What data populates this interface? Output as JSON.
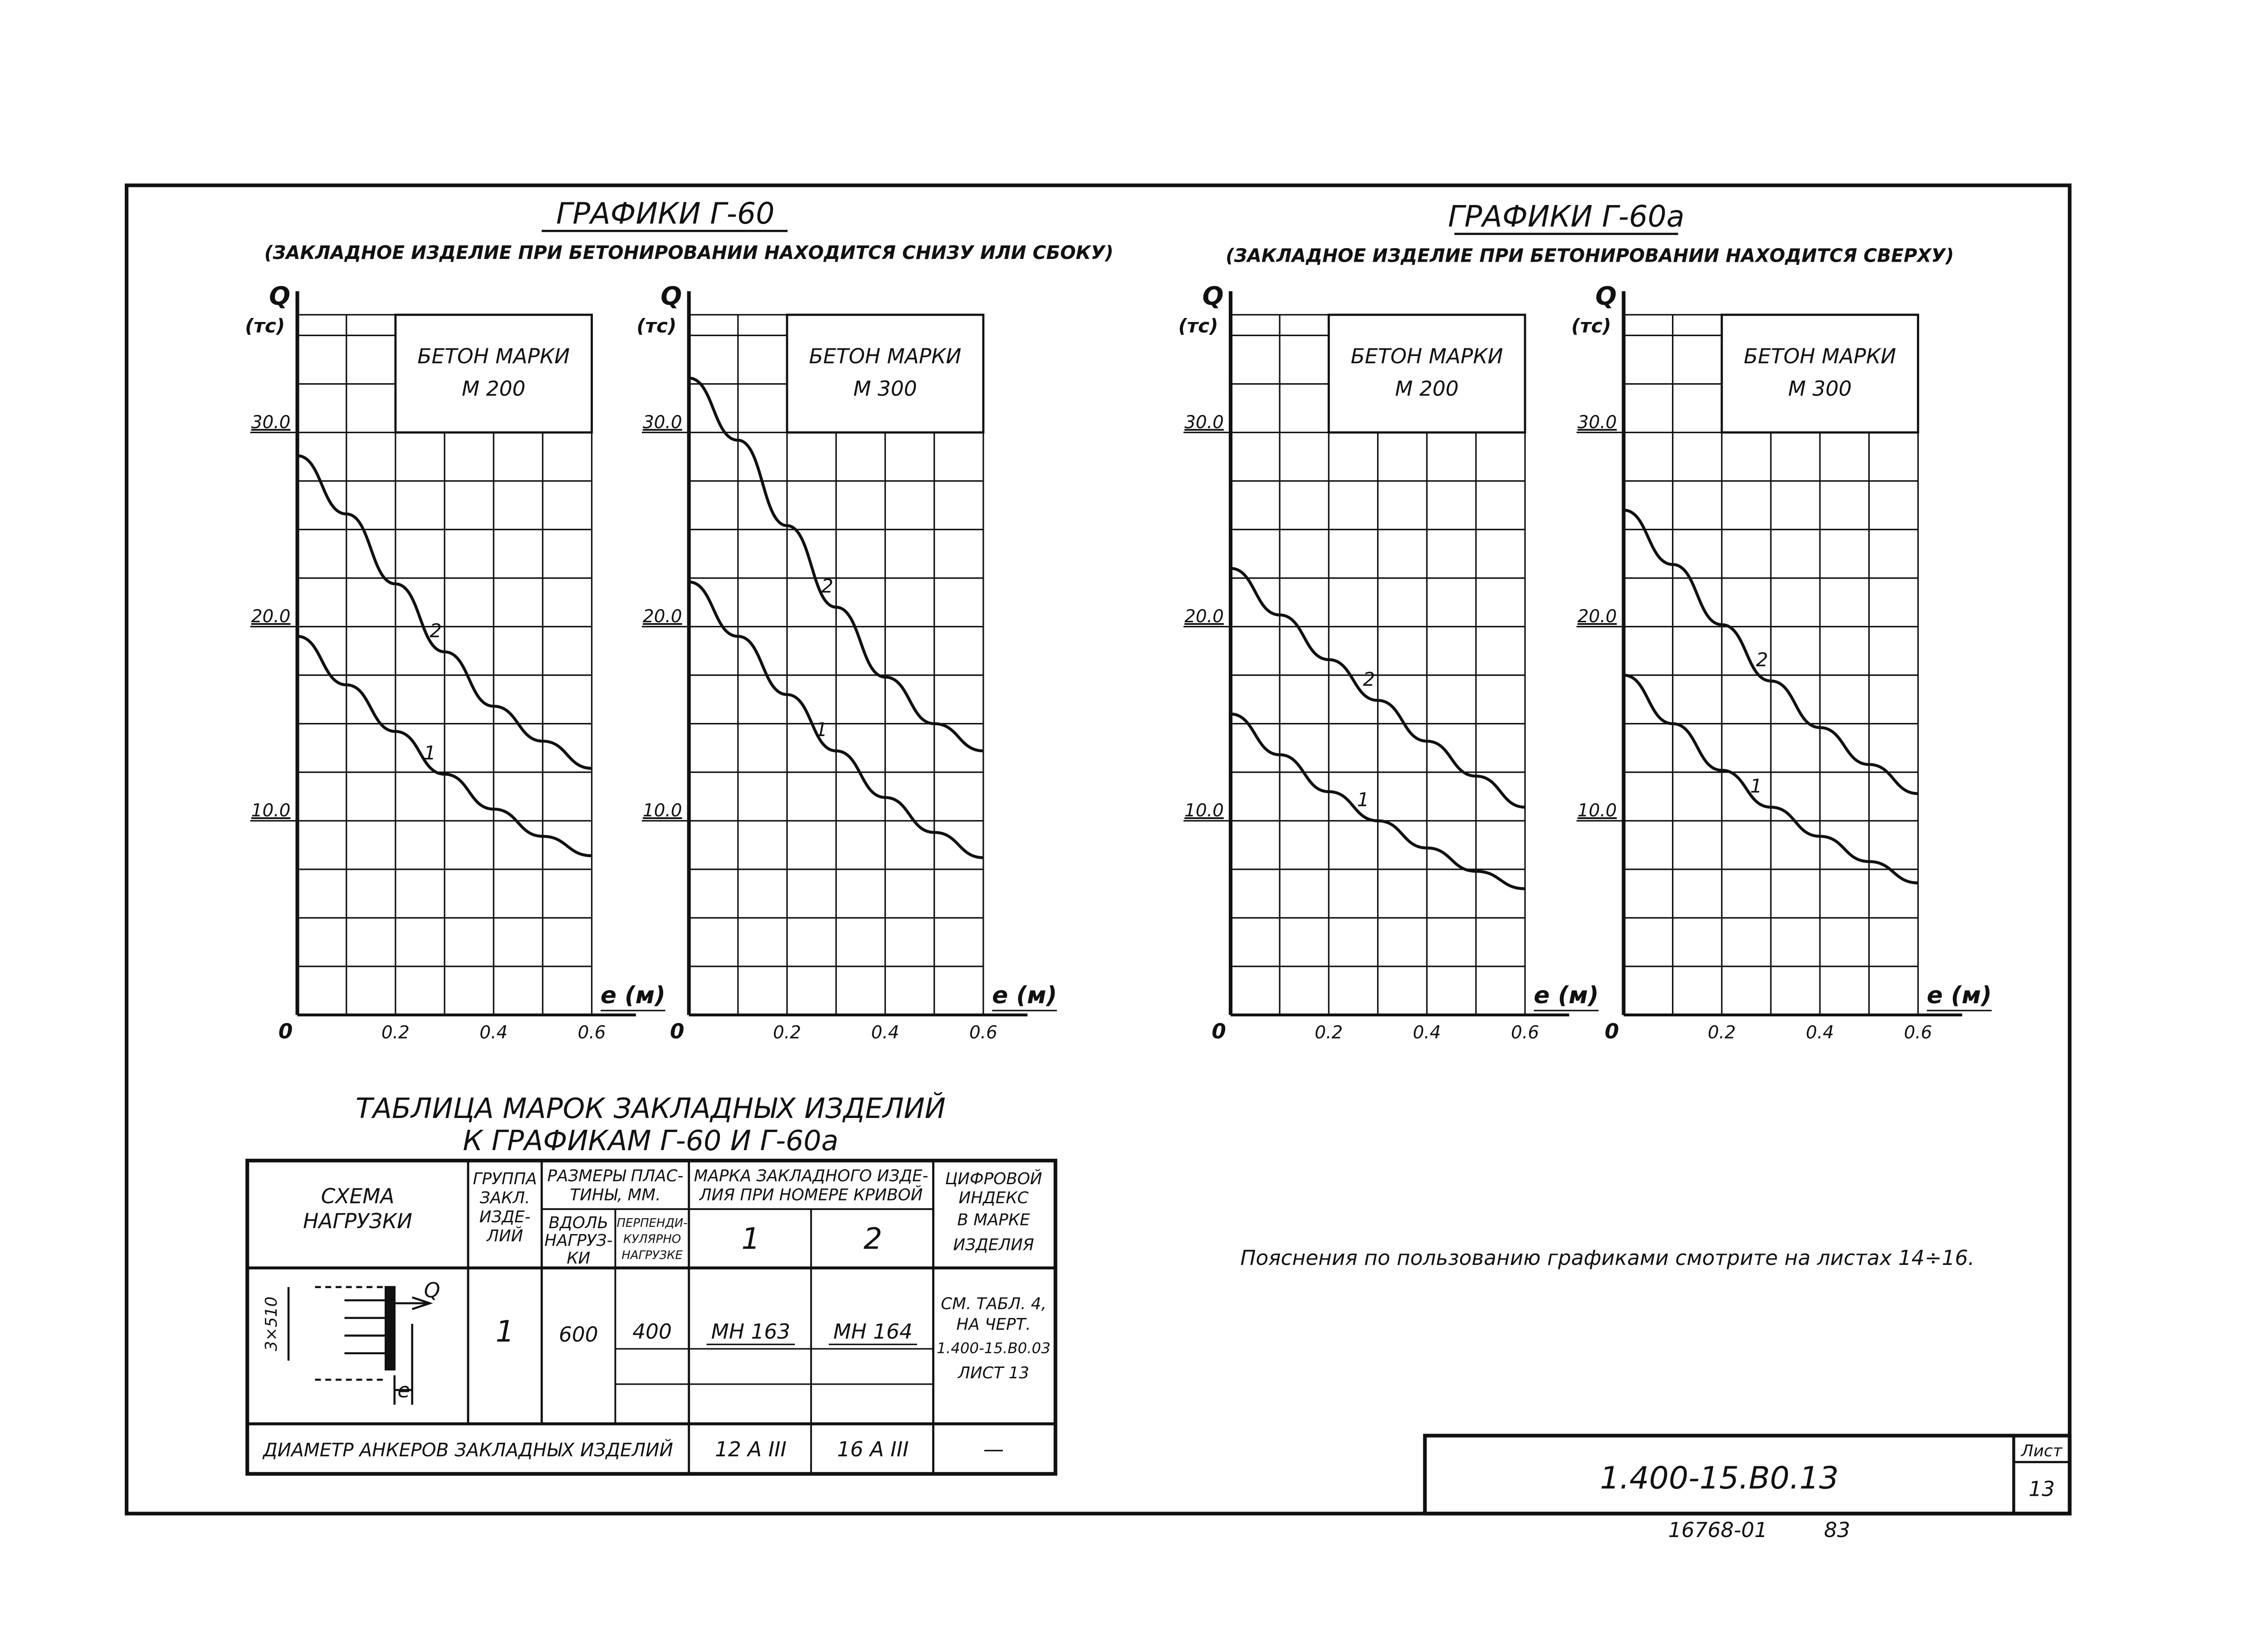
{
  "sheet": {
    "graphs_left_title": "ГРАФИКИ Г-60",
    "graphs_left_subtitle": "(ЗАКЛАДНОЕ ИЗДЕЛИЕ ПРИ БЕТОНИРОВАНИИ НАХОДИТСЯ СНИЗУ ИЛИ СБОКУ)",
    "graphs_right_title": "ГРАФИКИ Г-60а",
    "graphs_right_subtitle": "(ЗАКЛАДНОЕ ИЗДЕЛИЕ ПРИ БЕТОНИРОВАНИИ НАХОДИТСЯ СВЕРХУ)",
    "note": "Пояснения по пользованию графиками смотрите на листах 14÷16.",
    "code": "1.400-15.В0.13",
    "sheet_label": "Лист",
    "sheet_number": "13",
    "archive_number": "16768-01",
    "archive_suffix": "83"
  },
  "chart_data": [
    {
      "type": "line",
      "title": "ГРАФИКИ Г-60",
      "box_label_1": "БЕТОН МАРКИ",
      "box_label_2": "М 200",
      "ylabel": "Q",
      "yunit": "(тс)",
      "xlabel": "e (м)",
      "xlim": [
        0,
        0.6
      ],
      "ylim": [
        0,
        36
      ],
      "x_ticks": [
        "0",
        "0.2",
        "0.4",
        "0.6"
      ],
      "y_ticks": [
        "10.0",
        "20.0",
        "30.0"
      ],
      "series": [
        {
          "name": "1",
          "x": [
            0,
            0.1,
            0.2,
            0.3,
            0.4,
            0.5,
            0.6
          ],
          "values": [
            19.5,
            17.0,
            14.6,
            12.4,
            10.6,
            9.2,
            8.2
          ]
        },
        {
          "name": "2",
          "x": [
            0,
            0.1,
            0.2,
            0.3,
            0.4,
            0.5,
            0.6
          ],
          "values": [
            28.8,
            25.8,
            22.2,
            18.7,
            15.9,
            14.1,
            12.7
          ]
        }
      ]
    },
    {
      "type": "line",
      "title": "ГРАФИКИ Г-60",
      "box_label_1": "БЕТОН МАРКИ",
      "box_label_2": "М 300",
      "ylabel": "Q",
      "yunit": "(тс)",
      "xlabel": "e (м)",
      "xlim": [
        0,
        0.6
      ],
      "ylim": [
        0,
        36
      ],
      "x_ticks": [
        "0",
        "0.2",
        "0.4",
        "0.6"
      ],
      "y_ticks": [
        "10.0",
        "20.0",
        "30.0"
      ],
      "series": [
        {
          "name": "1",
          "x": [
            0,
            0.1,
            0.2,
            0.3,
            0.4,
            0.5,
            0.6
          ],
          "values": [
            22.3,
            19.5,
            16.5,
            13.6,
            11.2,
            9.4,
            8.1
          ]
        },
        {
          "name": "2",
          "x": [
            0,
            0.1,
            0.2,
            0.3,
            0.4,
            0.5,
            0.6
          ],
          "values": [
            32.8,
            29.6,
            25.2,
            21.0,
            17.4,
            15.0,
            13.6
          ]
        }
      ]
    },
    {
      "type": "line",
      "title": "ГРАФИКИ Г-60а",
      "box_label_1": "БЕТОН МАРКИ",
      "box_label_2": "М 200",
      "ylabel": "Q",
      "yunit": "(тс)",
      "xlabel": "e (м)",
      "xlim": [
        0,
        0.6
      ],
      "ylim": [
        0,
        36
      ],
      "x_ticks": [
        "0",
        "0.2",
        "0.4",
        "0.6"
      ],
      "y_ticks": [
        "10.0",
        "20.0",
        "30.0"
      ],
      "series": [
        {
          "name": "1",
          "x": [
            0,
            0.1,
            0.2,
            0.3,
            0.4,
            0.5,
            0.6
          ],
          "values": [
            15.5,
            13.4,
            11.5,
            10.0,
            8.6,
            7.4,
            6.5
          ]
        },
        {
          "name": "2",
          "x": [
            0,
            0.1,
            0.2,
            0.3,
            0.4,
            0.5,
            0.6
          ],
          "values": [
            23.0,
            20.6,
            18.3,
            16.2,
            14.1,
            12.3,
            10.7
          ]
        }
      ]
    },
    {
      "type": "line",
      "title": "ГРАФИКИ Г-60а",
      "box_label_1": "БЕТОН МАРКИ",
      "box_label_2": "М 300",
      "ylabel": "Q",
      "yunit": "(тс)",
      "xlabel": "e (м)",
      "xlim": [
        0,
        0.6
      ],
      "ylim": [
        0,
        36
      ],
      "x_ticks": [
        "0",
        "0.2",
        "0.4",
        "0.6"
      ],
      "y_ticks": [
        "10.0",
        "20.0",
        "30.0"
      ],
      "series": [
        {
          "name": "1",
          "x": [
            0,
            0.1,
            0.2,
            0.3,
            0.4,
            0.5,
            0.6
          ],
          "values": [
            17.5,
            15.0,
            12.6,
            10.7,
            9.2,
            7.9,
            6.8
          ]
        },
        {
          "name": "2",
          "x": [
            0,
            0.1,
            0.2,
            0.3,
            0.4,
            0.5,
            0.6
          ],
          "values": [
            26.0,
            23.2,
            20.1,
            17.2,
            14.8,
            12.9,
            11.4
          ]
        }
      ]
    }
  ],
  "table": {
    "title_1": "ТАБЛИЦА МАРОК ЗАКЛАДНЫХ ИЗДЕЛИЙ",
    "title_2": "К ГРАФИКАМ Г-60 И Г-60а",
    "h_scheme": [
      "СХЕМА",
      "НАГРУЗКИ"
    ],
    "h_group": [
      "ГРУППА",
      "ЗАКЛ.",
      "ИЗДЕ-",
      "ЛИЙ"
    ],
    "h_sizes": [
      "РАЗМЕРЫ ПЛАС-",
      "ТИНЫ, ММ."
    ],
    "h_along": [
      "ВДОЛЬ",
      "НАГРУЗ-",
      "КИ"
    ],
    "h_perp": [
      "ПЕРПЕНДИ-",
      "КУЛЯРНО",
      "НАГРУЗКЕ"
    ],
    "h_mark": [
      "МАРКА ЗАКЛАДНОГО ИЗДЕ-",
      "ЛИЯ ПРИ НОМЕРЕ КРИВОЙ"
    ],
    "h_curve_1": "1",
    "h_curve_2": "2",
    "h_index": [
      "ЦИФРОВОЙ",
      "ИНДЕКС",
      "В МАРКЕ",
      "ИЗДЕЛИЯ"
    ],
    "row_group": "1",
    "row_along": "600",
    "row_perp": "400",
    "row_mark_1": "МН 163",
    "row_mark_2": "МН 164",
    "row_index": [
      "СМ. ТАБЛ. 4,",
      "НА ЧЕРТ.",
      "1.400-15.В0.03",
      "ЛИСТ 13"
    ],
    "diam_label": "ДИАМЕТР АНКЕРОВ ЗАКЛАДНЫХ ИЗДЕЛИЙ",
    "diam_1": "12 А III",
    "diam_2": "16 А III",
    "diam_index": "—",
    "scheme_q": "Q",
    "scheme_e": "e",
    "scheme_dim": "3×510"
  }
}
